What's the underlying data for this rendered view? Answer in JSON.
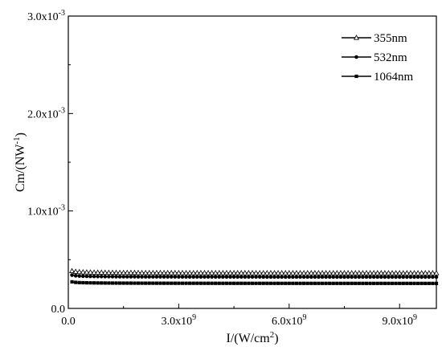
{
  "chart_data": {
    "type": "scatter",
    "title": "",
    "xlabel": {
      "main": "I/(W/cm",
      "sup": "2",
      "tail": ")"
    },
    "ylabel": {
      "main": "Cm/(NW",
      "sup": "-1",
      "tail": ")"
    },
    "xlim": [
      0,
      10000000000
    ],
    "ylim": [
      0,
      0.003
    ],
    "x_ticks": [
      {
        "value": 0,
        "mantissa": "0.0",
        "exp": ""
      },
      {
        "value": 3000000000,
        "mantissa": "3.0x10",
        "exp": "9"
      },
      {
        "value": 6000000000,
        "mantissa": "6.0x10",
        "exp": "9"
      },
      {
        "value": 9000000000,
        "mantissa": "9.0x10",
        "exp": "9"
      }
    ],
    "y_ticks": [
      {
        "value": 0,
        "mantissa": "0.0",
        "exp": ""
      },
      {
        "value": 0.001,
        "mantissa": "1.0x10",
        "exp": "-3"
      },
      {
        "value": 0.002,
        "mantissa": "2.0x10",
        "exp": "-3"
      },
      {
        "value": 0.003,
        "mantissa": "3.0x10",
        "exp": "-3"
      }
    ],
    "legend_position": "top-right",
    "grid": false,
    "series": [
      {
        "name": "355nm",
        "marker": "open-triangle",
        "x_min": 100000000,
        "x_max": 10000000000,
        "points": 100,
        "coef": 0.2425,
        "exp": -0.5,
        "offset": 0.00036
      },
      {
        "name": "532nm",
        "marker": "filled-circle",
        "x_min": 100000000,
        "x_max": 10000000000,
        "points": 100,
        "coef": 0.217,
        "exp": -0.5,
        "offset": 0.00032
      },
      {
        "name": "1064nm",
        "marker": "filled-square",
        "x_min": 100000000,
        "x_max": 10000000000,
        "points": 100,
        "coef": 0.1745,
        "exp": -0.5,
        "offset": 0.000255
      }
    ],
    "series_formula": "y = coef * x^exp + offset (x in W/cm2, y in N/W)"
  }
}
